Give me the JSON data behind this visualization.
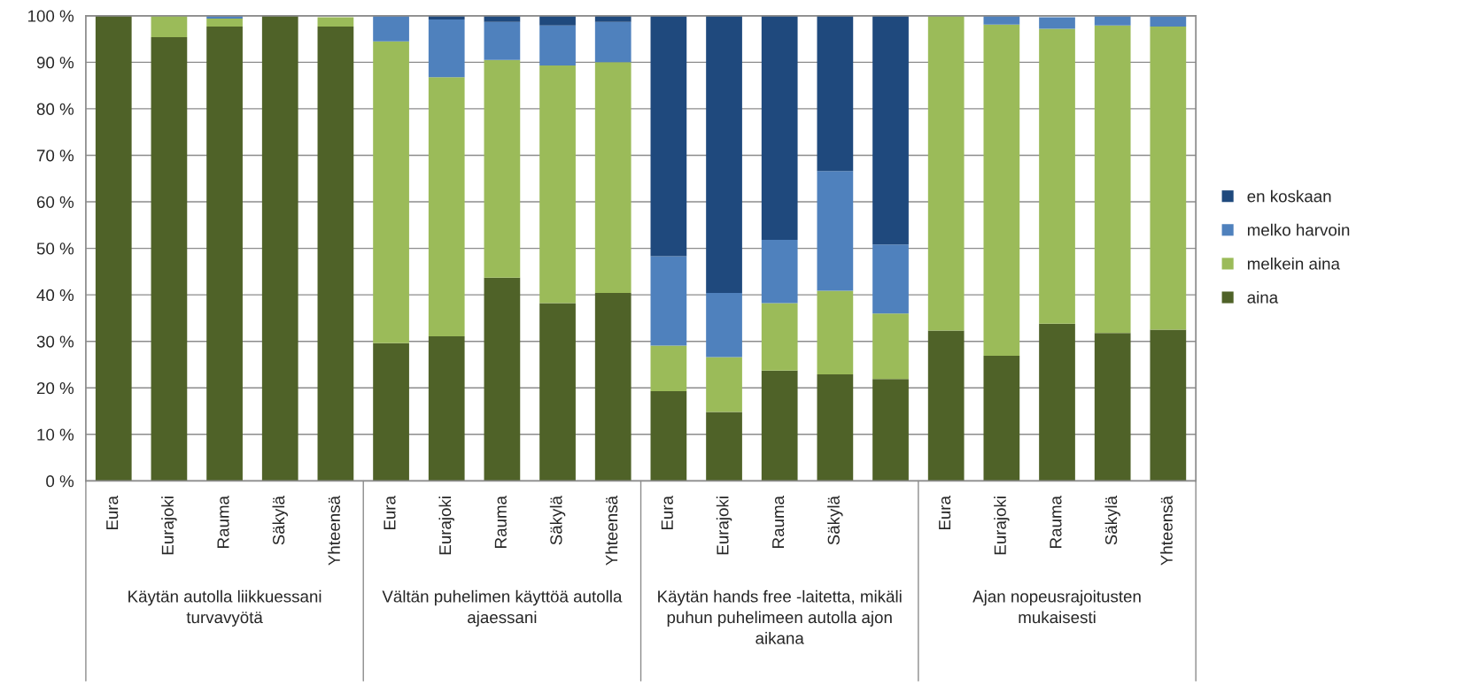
{
  "chart_data": {
    "type": "bar",
    "stacked": true,
    "legend": "right",
    "grid": "y",
    "categories": [
      "Eura",
      "Eurajoki",
      "Rauma",
      "Säkylä",
      "Yhteensä",
      "Eura",
      "Eurajoki",
      "Rauma",
      "Säkylä",
      "Yhteensä",
      "Eura",
      "Eurajoki",
      "Rauma",
      "Säkylä",
      null,
      "Eura",
      "Eurajoki",
      "Rauma",
      "Säkylä",
      "Yhteensä"
    ],
    "series": [
      {
        "name": "aina",
        "color": "#4f6228",
        "values": [
          100,
          95.4,
          97.7,
          100,
          97.7,
          29.6,
          31.1,
          43.7,
          38.2,
          40.4,
          19.3,
          14.8,
          23.7,
          22.9,
          21.9,
          32.3,
          26.9,
          33.8,
          31.8,
          32.5
        ]
      },
      {
        "name": "melkein aina",
        "color": "#9bbb59",
        "values": [
          0,
          4.6,
          1.7,
          0,
          2.0,
          64.9,
          55.7,
          46.8,
          51.1,
          49.6,
          9.8,
          11.8,
          14.5,
          18.0,
          14.1,
          67.7,
          71.2,
          63.4,
          66.1,
          65.2
        ]
      },
      {
        "name": "melko harvoin",
        "color": "#4f81bd",
        "values": [
          0,
          0,
          0.6,
          0,
          null,
          5.5,
          12.4,
          8.2,
          8.6,
          8.7,
          19.2,
          13.8,
          13.6,
          25.7,
          14.8,
          0,
          1.9,
          2.5,
          2.1,
          2.3
        ]
      },
      {
        "name": "en koskaan",
        "color": "#1f497d",
        "values": [
          0,
          0,
          0,
          0,
          0,
          0,
          0.8,
          1.3,
          2.1,
          1.3,
          51.7,
          59.6,
          48.2,
          33.4,
          49.2,
          0,
          0,
          null,
          0,
          0
        ]
      }
    ],
    "ylim": [
      0,
      100
    ],
    "yticks": [
      {
        "value": 0,
        "label": "0 %"
      },
      {
        "value": 10,
        "label": "10 %"
      },
      {
        "value": 20,
        "label": "20 %"
      },
      {
        "value": 30,
        "label": "30 %"
      },
      {
        "value": 40,
        "label": "40 %"
      },
      {
        "value": 50,
        "label": "50 %"
      },
      {
        "value": 60,
        "label": "60 %"
      },
      {
        "value": 70,
        "label": "70 %"
      },
      {
        "value": 80,
        "label": "80 %"
      },
      {
        "value": 90,
        "label": "90 %"
      },
      {
        "value": 100,
        "label": "100 %"
      }
    ],
    "annotations": [
      "Käytän autolla liikkuessani turvavyötä",
      "Vältän puhelimen käyttöä autolla ajaessani",
      "Käytän hands free -laitetta, mikäli puhun puhelimeen autolla ajon aikana",
      "Ajan nopeusrajoitusten mukaisesti"
    ]
  }
}
